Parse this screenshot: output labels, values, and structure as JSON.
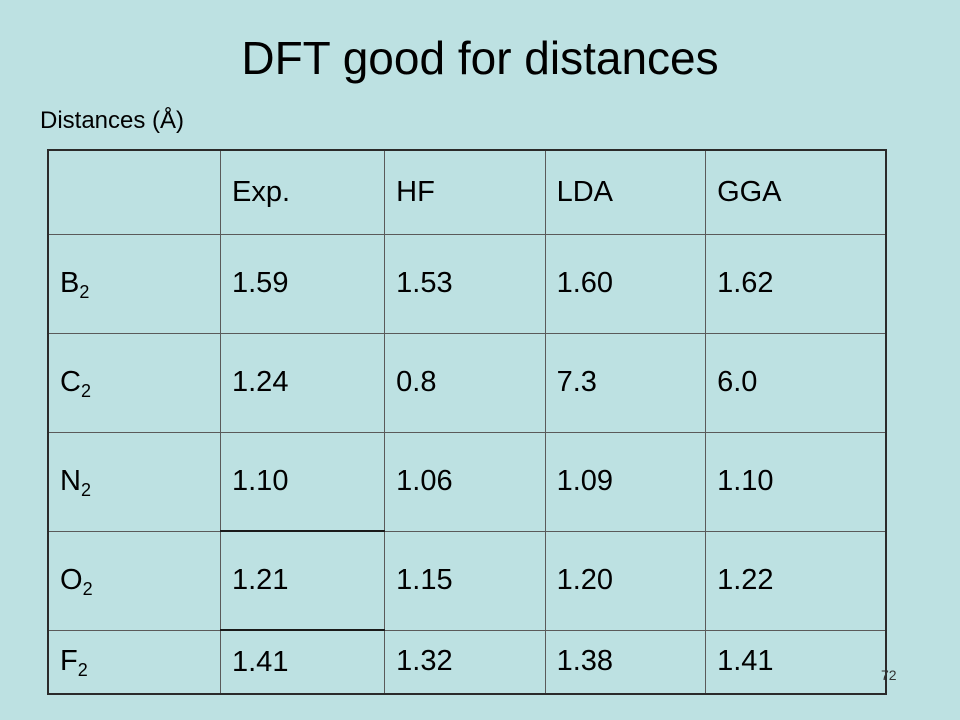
{
  "slide": {
    "title": "DFT good for distances",
    "subtitle": "Distances (Å)",
    "page_number": "72"
  },
  "table": {
    "headers": [
      "",
      "Exp.",
      "HF",
      "LDA",
      "GGA"
    ],
    "rows": [
      {
        "base": "B",
        "sub": "2",
        "values": [
          "1.59",
          "1.53",
          "1.60",
          "1.62"
        ]
      },
      {
        "base": "C",
        "sub": "2",
        "values": [
          "1.24",
          "0.8",
          "7.3",
          "6.0"
        ]
      },
      {
        "base": "N",
        "sub": "2",
        "values": [
          "1.10",
          "1.06",
          "1.09",
          "1.10"
        ]
      },
      {
        "base": "O",
        "sub": "2",
        "values": [
          "1.21",
          "1.15",
          "1.20",
          "1.22"
        ]
      },
      {
        "base": "F",
        "sub": "2",
        "values": [
          "1.41",
          "1.32",
          "1.38",
          "1.41"
        ]
      }
    ]
  },
  "colors": {
    "background": "#bde1e2",
    "text": "#000000"
  }
}
